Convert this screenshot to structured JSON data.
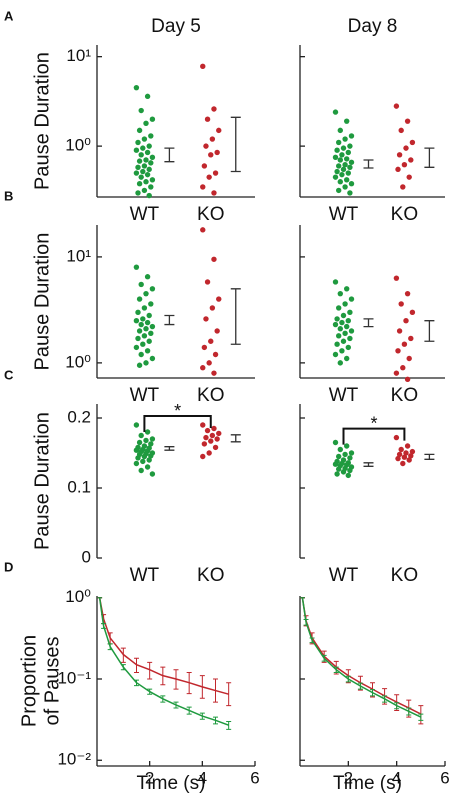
{
  "chart_data": [
    {
      "type": "strip",
      "panel": "A",
      "title": "Day 5",
      "ylabel": "Pause Duration",
      "log": true,
      "ylim": [
        0.27,
        13.5
      ],
      "yticks": [
        {
          "value": 1,
          "label": "10⁰"
        },
        {
          "value": 10,
          "label": "10¹"
        }
      ],
      "series": [
        {
          "name": "WT",
          "color": "#1f9a3f",
          "values": [
            4.5,
            3.6,
            2.5,
            2.0,
            1.8,
            1.5,
            1.3,
            1.2,
            1.1,
            1.0,
            0.95,
            0.9,
            0.85,
            0.8,
            0.75,
            0.7,
            0.68,
            0.65,
            0.6,
            0.58,
            0.55,
            0.52,
            0.5,
            0.48,
            0.45,
            0.42,
            0.4,
            0.38,
            0.35,
            0.32,
            0.3,
            0.28
          ],
          "error_range": [
            0.67,
            0.95
          ]
        },
        {
          "name": "KO",
          "color": "#c1272d",
          "values": [
            7.8,
            2.6,
            2.0,
            1.5,
            1.2,
            1.0,
            0.85,
            0.8,
            0.6,
            0.5,
            0.45,
            0.35,
            0.3
          ],
          "error_range": [
            0.52,
            2.1
          ]
        }
      ]
    },
    {
      "type": "strip",
      "title": "Day 8",
      "log": true,
      "ytick_labels": false,
      "ylim": [
        0.27,
        13.5
      ],
      "yticks": [
        1,
        10
      ],
      "series": [
        {
          "name": "WT",
          "color": "#1f9a3f",
          "values": [
            2.4,
            1.9,
            1.5,
            1.3,
            1.2,
            1.1,
            1.0,
            0.95,
            0.9,
            0.85,
            0.8,
            0.75,
            0.72,
            0.7,
            0.66,
            0.62,
            0.6,
            0.58,
            0.55,
            0.52,
            0.5,
            0.48,
            0.45,
            0.42,
            0.4,
            0.38,
            0.35,
            0.32,
            0.3
          ],
          "error_range": [
            0.57,
            0.7
          ]
        },
        {
          "name": "KO",
          "color": "#c1272d",
          "values": [
            2.8,
            1.9,
            1.5,
            1.1,
            0.95,
            0.8,
            0.7,
            0.62,
            0.55,
            0.45,
            0.35
          ],
          "error_range": [
            0.58,
            0.95
          ]
        }
      ]
    },
    {
      "type": "strip",
      "panel": "B",
      "ylabel": "Pause Duration",
      "log": true,
      "ylim": [
        0.72,
        20
      ],
      "yticks": [
        {
          "value": 1,
          "label": "10⁰"
        },
        {
          "value": 10,
          "label": "10¹"
        }
      ],
      "series": [
        {
          "name": "WT",
          "color": "#1f9a3f",
          "values": [
            8.0,
            6.5,
            5.5,
            5.0,
            4.5,
            4.0,
            3.6,
            3.3,
            3.0,
            2.8,
            2.6,
            2.5,
            2.4,
            2.3,
            2.2,
            2.1,
            2.0,
            1.9,
            1.8,
            1.7,
            1.6,
            1.5,
            1.4,
            1.3,
            1.2,
            1.1,
            1.0,
            0.95
          ],
          "error_range": [
            2.3,
            2.8
          ]
        },
        {
          "name": "KO",
          "color": "#c1272d",
          "values": [
            18,
            9.5,
            5.8,
            4.0,
            3.3,
            2.6,
            2.0,
            1.6,
            1.4,
            1.2,
            1.0,
            0.9,
            0.8
          ],
          "error_range": [
            1.5,
            5.0
          ]
        }
      ]
    },
    {
      "type": "strip",
      "log": true,
      "ytick_labels": false,
      "ylim": [
        0.72,
        20
      ],
      "yticks": [
        1,
        10
      ],
      "series": [
        {
          "name": "WT",
          "color": "#1f9a3f",
          "values": [
            5.8,
            5.0,
            4.5,
            4.0,
            3.6,
            3.3,
            3.0,
            2.8,
            2.6,
            2.5,
            2.4,
            2.3,
            2.2,
            2.1,
            2.0,
            1.9,
            1.8,
            1.7,
            1.6,
            1.5,
            1.4,
            1.3,
            1.2,
            1.1,
            1.0
          ],
          "error_range": [
            2.2,
            2.6
          ]
        },
        {
          "name": "KO",
          "color": "#c1272d",
          "values": [
            6.3,
            4.5,
            3.6,
            3.0,
            2.5,
            2.0,
            1.7,
            1.5,
            1.3,
            1.1,
            0.9,
            0.8,
            0.7
          ],
          "error_range": [
            1.6,
            2.5
          ]
        }
      ]
    },
    {
      "type": "strip",
      "panel": "C",
      "ylabel": "Pause Duration",
      "log": false,
      "significance": "*",
      "ylim": [
        0,
        0.22
      ],
      "yticks": [
        0,
        0.1,
        0.2
      ],
      "series": [
        {
          "name": "WT",
          "color": "#1f9a3f",
          "values": [
            0.19,
            0.18,
            0.175,
            0.17,
            0.168,
            0.165,
            0.163,
            0.16,
            0.158,
            0.157,
            0.155,
            0.154,
            0.153,
            0.152,
            0.15,
            0.149,
            0.148,
            0.146,
            0.145,
            0.143,
            0.14,
            0.138,
            0.135,
            0.13,
            0.125,
            0.12
          ],
          "error_range": [
            0.154,
            0.159
          ]
        },
        {
          "name": "KO",
          "color": "#c1272d",
          "values": [
            0.19,
            0.185,
            0.182,
            0.178,
            0.175,
            0.172,
            0.17,
            0.167,
            0.163,
            0.158,
            0.15,
            0.145
          ],
          "error_range": [
            0.166,
            0.176
          ]
        }
      ]
    },
    {
      "type": "strip",
      "log": false,
      "ytick_labels": false,
      "significance": "*",
      "ylim": [
        0,
        0.22
      ],
      "yticks": [
        0,
        0.1,
        0.2
      ],
      "series": [
        {
          "name": "WT",
          "color": "#1f9a3f",
          "values": [
            0.165,
            0.16,
            0.155,
            0.15,
            0.148,
            0.145,
            0.143,
            0.14,
            0.138,
            0.136,
            0.135,
            0.134,
            0.133,
            0.132,
            0.13,
            0.128,
            0.127,
            0.125,
            0.123,
            0.12,
            0.118
          ],
          "error_range": [
            0.131,
            0.136
          ]
        },
        {
          "name": "KO",
          "color": "#c1272d",
          "values": [
            0.172,
            0.16,
            0.155,
            0.152,
            0.15,
            0.148,
            0.146,
            0.144,
            0.142,
            0.14,
            0.135
          ],
          "error_range": [
            0.141,
            0.148
          ]
        }
      ]
    },
    {
      "type": "line",
      "panel": "D",
      "ylabel": [
        "Proportion",
        "of Pauses"
      ],
      "xlabel": "Time (s)",
      "log": true,
      "xlim": [
        0,
        6
      ],
      "xticks": [
        2,
        4,
        6
      ],
      "ylim": [
        0.0085,
        1.05
      ],
      "yticks": [
        {
          "value": 1,
          "label": "10⁰"
        },
        {
          "value": 0.1,
          "label": "10⁻¹"
        },
        {
          "value": 0.01,
          "label": "10⁻²"
        }
      ],
      "x": [
        0.1,
        0.25,
        0.5,
        1,
        1.5,
        2,
        2.5,
        3,
        3.5,
        4,
        4.5,
        5
      ],
      "series": [
        {
          "color": "#c1272d",
          "values": [
            1,
            0.55,
            0.32,
            0.2,
            0.15,
            0.13,
            0.11,
            0.1,
            0.09,
            0.08,
            0.072,
            0.065
          ],
          "lower": [
            1,
            0.48,
            0.27,
            0.16,
            0.12,
            0.1,
            0.085,
            0.075,
            0.066,
            0.058,
            0.052,
            0.047
          ],
          "upper": [
            1,
            0.62,
            0.37,
            0.24,
            0.18,
            0.16,
            0.14,
            0.13,
            0.12,
            0.11,
            0.1,
            0.09
          ]
        },
        {
          "color": "#1f9a3f",
          "values": [
            1,
            0.45,
            0.25,
            0.14,
            0.09,
            0.07,
            0.057,
            0.048,
            0.041,
            0.035,
            0.031,
            0.027
          ],
          "lower": [
            1,
            0.42,
            0.23,
            0.13,
            0.083,
            0.065,
            0.052,
            0.044,
            0.037,
            0.032,
            0.028,
            0.024
          ],
          "upper": [
            1,
            0.48,
            0.27,
            0.15,
            0.097,
            0.075,
            0.062,
            0.052,
            0.045,
            0.038,
            0.034,
            0.03
          ]
        }
      ]
    },
    {
      "type": "line",
      "xlabel": "Time (s)",
      "log": true,
      "ytick_labels": false,
      "xlim": [
        0,
        6
      ],
      "xticks": [
        2,
        4,
        6
      ],
      "ylim": [
        0.0085,
        1.05
      ],
      "yticks": [
        1,
        0.1,
        0.01
      ],
      "x": [
        0.1,
        0.25,
        0.5,
        1,
        1.5,
        2,
        2.5,
        3,
        3.5,
        4,
        4.5,
        5
      ],
      "series": [
        {
          "color": "#c1272d",
          "values": [
            1,
            0.52,
            0.32,
            0.19,
            0.14,
            0.11,
            0.09,
            0.075,
            0.062,
            0.052,
            0.044,
            0.037
          ],
          "lower": [
            1,
            0.45,
            0.27,
            0.16,
            0.115,
            0.09,
            0.073,
            0.06,
            0.049,
            0.041,
            0.034,
            0.028
          ],
          "upper": [
            1,
            0.6,
            0.37,
            0.22,
            0.165,
            0.13,
            0.108,
            0.09,
            0.076,
            0.064,
            0.055,
            0.047
          ]
        },
        {
          "color": "#1f9a3f",
          "values": [
            1,
            0.5,
            0.3,
            0.18,
            0.13,
            0.1,
            0.082,
            0.068,
            0.057,
            0.047,
            0.04,
            0.034
          ],
          "lower": [
            1,
            0.46,
            0.28,
            0.166,
            0.12,
            0.092,
            0.075,
            0.062,
            0.052,
            0.043,
            0.036,
            0.031
          ],
          "upper": [
            1,
            0.54,
            0.32,
            0.195,
            0.14,
            0.108,
            0.089,
            0.074,
            0.062,
            0.051,
            0.044,
            0.037
          ]
        }
      ]
    }
  ]
}
